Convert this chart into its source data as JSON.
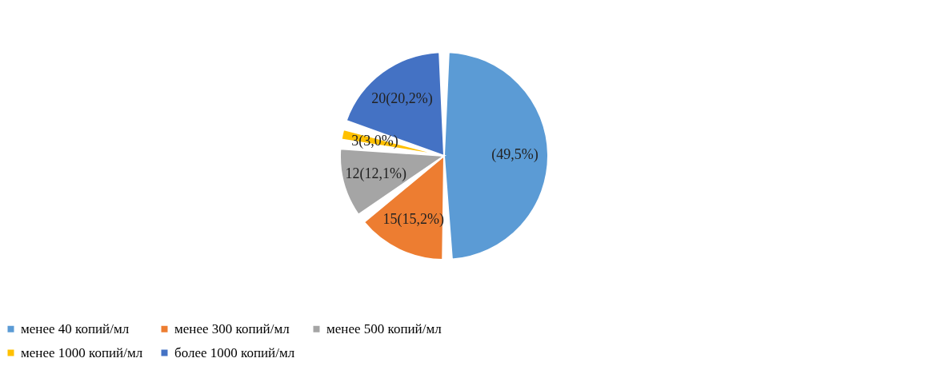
{
  "chart_data": {
    "type": "pie",
    "categories": [
      "менее 40 копий/мл",
      "менее 300 копий/мл",
      "менее 500 копий/мл",
      "менее 1000 копий/мл",
      "более 1000 копий/мл"
    ],
    "values": [
      49.5,
      15.2,
      12.1,
      3.0,
      20.2
    ],
    "colors": [
      "#5b9bd5",
      "#ed7d31",
      "#a5a5a5",
      "#ffc000",
      "#4472c4"
    ],
    "value_labels": [
      "(49,5%)",
      "15(15,2%)",
      "12(12,1%)",
      "3(3,0%)",
      "20(20,2%)"
    ],
    "legend": "bottom"
  }
}
